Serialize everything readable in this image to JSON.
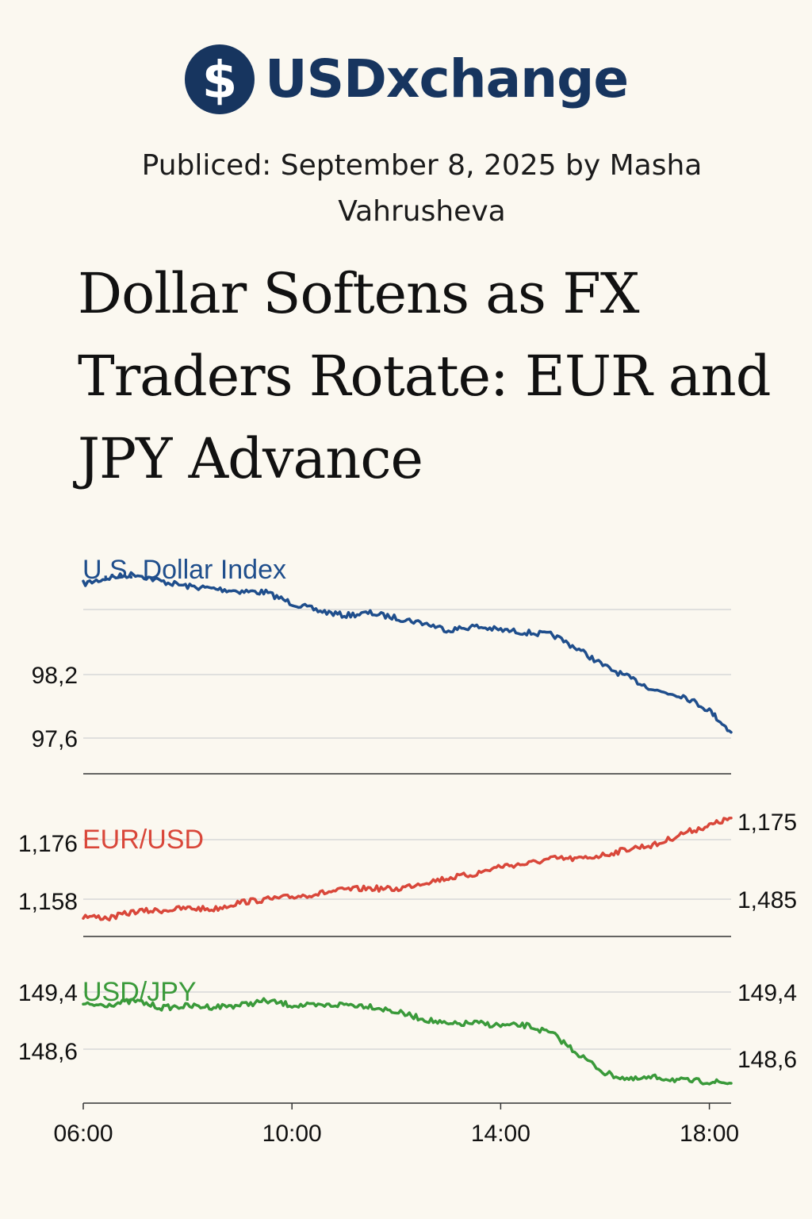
{
  "brand": {
    "name": "USDxchange",
    "icon": "dollar-coin-icon",
    "color": "#17355f"
  },
  "article": {
    "byline": "Publiced: September 8, 2025 by Masha Vahrusheva",
    "headline": "Dollar Softens as FX Traders Rotate: EUR and JPY Advance"
  },
  "chart_data": [
    {
      "type": "line",
      "title": "U.S. Dollar Index",
      "color": "#1f4e8c",
      "x_ticks": [
        "06:00",
        "10:00",
        "14:00",
        "18:00"
      ],
      "y_ticks_left": [
        "98,2",
        "97,6"
      ],
      "y_ticks_right": [],
      "grid": true,
      "series": [
        {
          "x": [
            "06:00",
            "06:30",
            "07:00",
            "07:30",
            "08:00",
            "08:30",
            "09:00",
            "09:30",
            "10:00",
            "10:30",
            "11:00",
            "11:30",
            "12:00",
            "12:30",
            "13:00",
            "13:30",
            "14:00",
            "14:30",
            "15:00",
            "15:30",
            "16:00",
            "16:30",
            "17:00",
            "17:30",
            "18:00",
            "18:25"
          ],
          "values": [
            98.9,
            98.95,
            98.98,
            98.92,
            98.88,
            98.86,
            98.84,
            98.83,
            98.74,
            98.68,
            98.64,
            98.66,
            98.62,
            98.58,
            98.52,
            98.55,
            98.52,
            98.5,
            98.48,
            98.36,
            98.22,
            98.12,
            98.02,
            97.98,
            97.86,
            97.68
          ]
        }
      ]
    },
    {
      "type": "line",
      "title": "EUR/USD",
      "color": "#d9473a",
      "x_ticks": [
        "06:00",
        "10:00",
        "14:00",
        "18:00"
      ],
      "y_ticks_left": [
        "1,176",
        "1,158"
      ],
      "y_ticks_right": [
        "1,175",
        "1,485"
      ],
      "grid": true,
      "series": [
        {
          "x": [
            "06:00",
            "06:30",
            "07:00",
            "07:30",
            "08:00",
            "08:30",
            "09:00",
            "09:30",
            "10:00",
            "10:30",
            "11:00",
            "11:30",
            "12:00",
            "12:30",
            "13:00",
            "13:30",
            "14:00",
            "14:30",
            "15:00",
            "15:30",
            "16:00",
            "16:30",
            "17:00",
            "17:30",
            "18:00",
            "18:25"
          ],
          "values": [
            1.1575,
            1.1572,
            1.1584,
            1.1586,
            1.159,
            1.1588,
            1.1601,
            1.1606,
            1.1611,
            1.1617,
            1.1624,
            1.1627,
            1.1625,
            1.1637,
            1.1646,
            1.1653,
            1.1668,
            1.1672,
            1.1682,
            1.1681,
            1.1689,
            1.1701,
            1.1708,
            1.1729,
            1.1743,
            1.1757
          ]
        }
      ]
    },
    {
      "type": "line",
      "title": "USD/JPY",
      "color": "#3a9a3a",
      "x_ticks": [
        "06:00",
        "10:00",
        "14:00",
        "18:00"
      ],
      "y_ticks_left": [
        "149,4",
        "148,6"
      ],
      "y_ticks_right": [
        "149,4",
        "148,6"
      ],
      "grid": true,
      "series": [
        {
          "x": [
            "06:00",
            "06:30",
            "07:00",
            "07:30",
            "08:00",
            "08:30",
            "09:00",
            "09:30",
            "10:00",
            "10:30",
            "11:00",
            "11:30",
            "12:00",
            "12:30",
            "13:00",
            "13:30",
            "14:00",
            "14:30",
            "15:00",
            "15:30",
            "16:00",
            "16:30",
            "17:00",
            "17:30",
            "18:00",
            "18:25"
          ],
          "values": [
            149.32,
            149.33,
            149.37,
            149.29,
            149.31,
            149.3,
            149.32,
            149.37,
            149.32,
            149.31,
            149.33,
            149.31,
            149.24,
            149.16,
            149.09,
            149.11,
            149.08,
            149.08,
            148.98,
            148.74,
            148.52,
            148.44,
            148.47,
            148.43,
            148.42,
            148.4
          ]
        }
      ]
    }
  ]
}
